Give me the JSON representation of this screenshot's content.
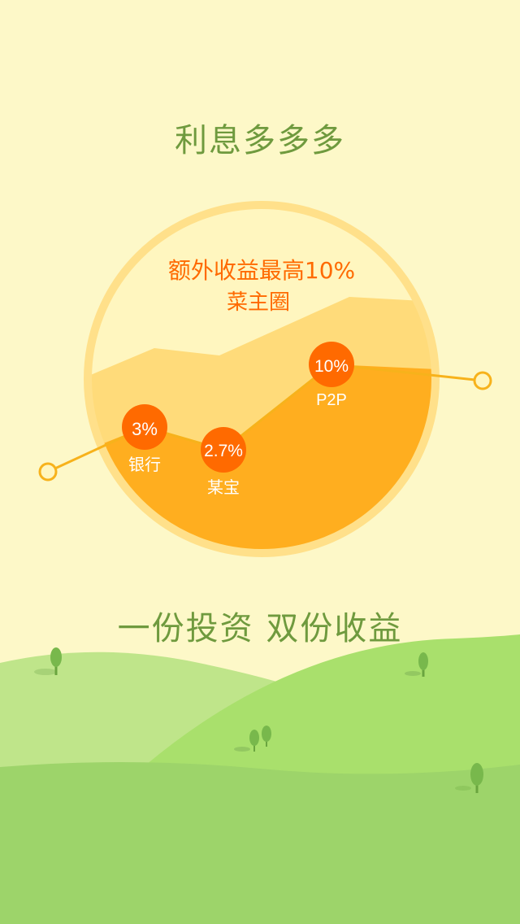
{
  "page": {
    "title": "利息多多多",
    "tagline": "一份投资 双份收益"
  },
  "chart": {
    "headline": "额外收益最高10%",
    "brand": "菜主圈",
    "points": [
      {
        "value": "3%",
        "label": "银行"
      },
      {
        "value": "2.7%",
        "label": "某宝"
      },
      {
        "value": "10%",
        "label": "P2P"
      }
    ]
  },
  "chart_data": {
    "type": "line",
    "categories": [
      "银行",
      "某宝",
      "P2P"
    ],
    "values": [
      3,
      2.7,
      10
    ],
    "title": "额外收益最高10%"
  },
  "colors": {
    "background": "#fdf8c8",
    "headline_green": "#6f9a3e",
    "accent_orange": "#ff6a00",
    "circle_border": "#ffe08a",
    "area_light": "#ffdb7a",
    "area_dark": "#ffae1f",
    "hill_light": "#bfe58a",
    "hill_main": "#a9e06c",
    "hill_dark": "#9dd46a"
  }
}
